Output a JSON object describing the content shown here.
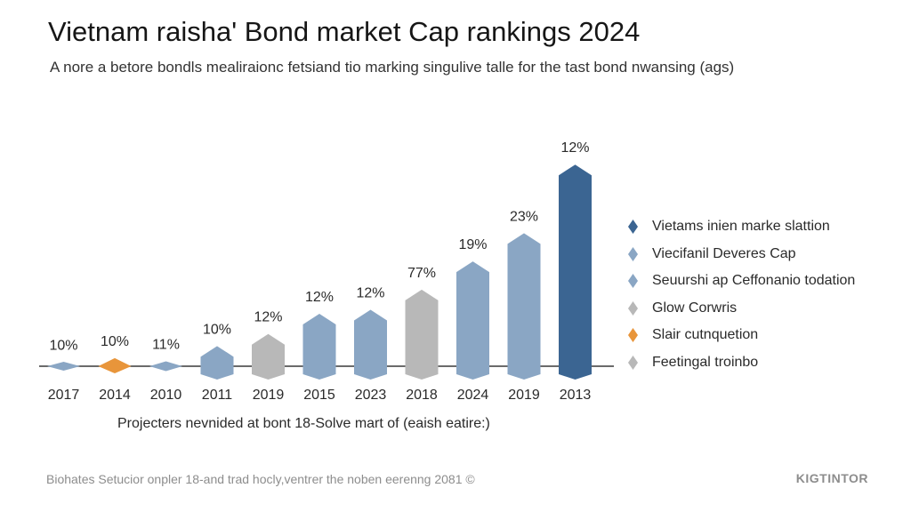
{
  "chart_data": {
    "type": "bar",
    "title": "Vietnam raisha' Bond market Cap rankings 2024",
    "subtitle": "A nore a betore bondls mealiraionc fetsiand tio marking singulive talle for the tast bond nwansing (ags)",
    "categories": [
      "2017",
      "2014",
      "2010",
      "2011",
      "2019",
      "2015",
      "2023",
      "2018",
      "2024",
      "2019",
      "2013"
    ],
    "values": [
      0.5,
      1,
      0.6,
      2.5,
      4,
      6.5,
      7,
      9.5,
      13,
      16.5,
      25
    ],
    "data_labels": [
      "10%",
      "10%",
      "11%",
      "10%",
      "12%",
      "12%",
      "12%",
      "77%",
      "19%",
      "23%",
      "12%"
    ],
    "bar_colors": [
      "#8aa6c4",
      "#e8953a",
      "#8aa6c4",
      "#8aa6c4",
      "#b8b8b8",
      "#8aa6c4",
      "#8aa6c4",
      "#b8b8b8",
      "#8aa6c4",
      "#8aa6c4",
      "#3b6592"
    ],
    "ylim": [
      0,
      28
    ],
    "xlabel": "Projecters nevnided at bont 18-Solve mart of (eaish eatire:)",
    "ylabel": "",
    "legend": [
      {
        "label": "Vietams inien marke slattion",
        "color": "#3b6592"
      },
      {
        "label": "Viecifanil Deveres Cap",
        "color": "#8aa6c4"
      },
      {
        "label": "Seuurshi ap Ceffonanio todation",
        "color": "#8aa6c4"
      },
      {
        "label": "Glow Corwris",
        "color": "#b8b8b8"
      },
      {
        "label": "Slair cutnquetion",
        "color": "#e8953a"
      },
      {
        "label": "Feetingal troinbo",
        "color": "#b8b8b8"
      }
    ],
    "legend_position": "right"
  },
  "footer": {
    "text": "Biohates Setucior onpler 18-and trad hocly,ventrer the noben eerenng 2081 ©",
    "brand": "KIGTINTOR"
  }
}
